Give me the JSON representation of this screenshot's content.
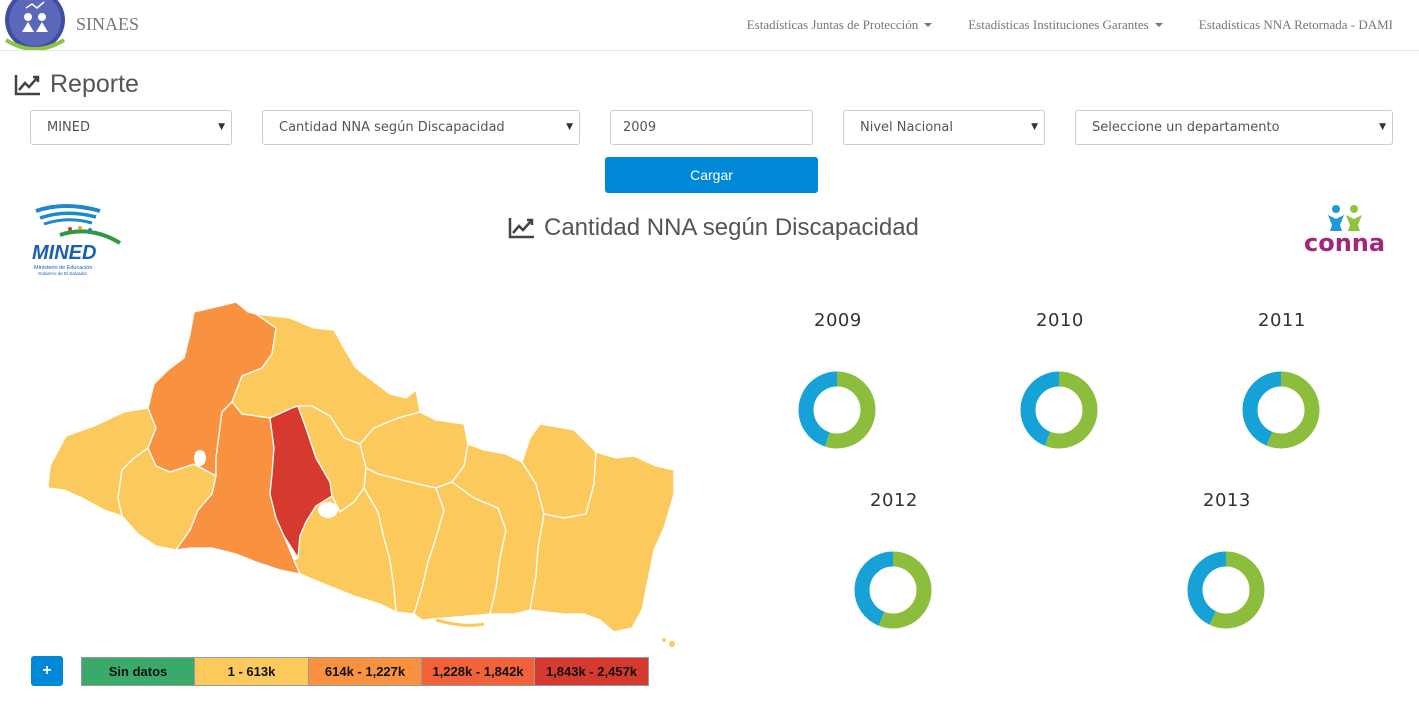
{
  "navbar": {
    "brand": "SINAES",
    "links": [
      {
        "label": "Estadísticas Juntas de Protección",
        "dropdown": true
      },
      {
        "label": "Estadísticas Instituciones Garantes",
        "dropdown": true
      },
      {
        "label": "Estadísticas NNA Retornada - DAMI",
        "dropdown": false
      }
    ]
  },
  "page": {
    "title": "Reporte",
    "title_icon": "line-chart-icon"
  },
  "filters": {
    "institution": "MINED",
    "indicator": "Cantidad NNA según Discapacidad",
    "year": "2009",
    "level": "Nivel Nacional",
    "department_placeholder": "Seleccione un departamento",
    "load_button": "Cargar"
  },
  "chart_title": "Cantidad NNA según Discapacidad",
  "logos": {
    "left_main": "MINED",
    "left_sub1": "Ministerio de Educación",
    "left_sub2": "Gobierno de El Salvador",
    "right": "conna"
  },
  "colors": {
    "blue": "#16a2d7",
    "green": "#8dbd3c",
    "sin_datos": "#3aaa6b",
    "range1": "#fcc95d",
    "range2": "#f89241",
    "range3": "#f1613a",
    "range4": "#d63a2f",
    "accent": "#0088d9"
  },
  "chart_data": {
    "type": "pie",
    "donut": true,
    "series_colors": [
      "#16a2d7",
      "#8dbd3c"
    ],
    "charts": [
      {
        "title": "2009",
        "values": [
          45,
          55
        ]
      },
      {
        "title": "2010",
        "values": [
          44,
          56
        ]
      },
      {
        "title": "2011",
        "values": [
          44,
          56
        ]
      },
      {
        "title": "2012",
        "values": [
          44,
          56
        ]
      },
      {
        "title": "2013",
        "values": [
          43,
          57
        ]
      }
    ]
  },
  "legend": {
    "expand_button": "+",
    "items": [
      {
        "label": "Sin datos",
        "color": "#3aaa6b"
      },
      {
        "label": "1 - 613k",
        "color": "#fcc95d"
      },
      {
        "label": "614k - 1,227k",
        "color": "#f89241"
      },
      {
        "label": "1,228k - 1,842k",
        "color": "#f1613a"
      },
      {
        "label": "1,843k - 2,457k",
        "color": "#d63a2f"
      }
    ]
  }
}
